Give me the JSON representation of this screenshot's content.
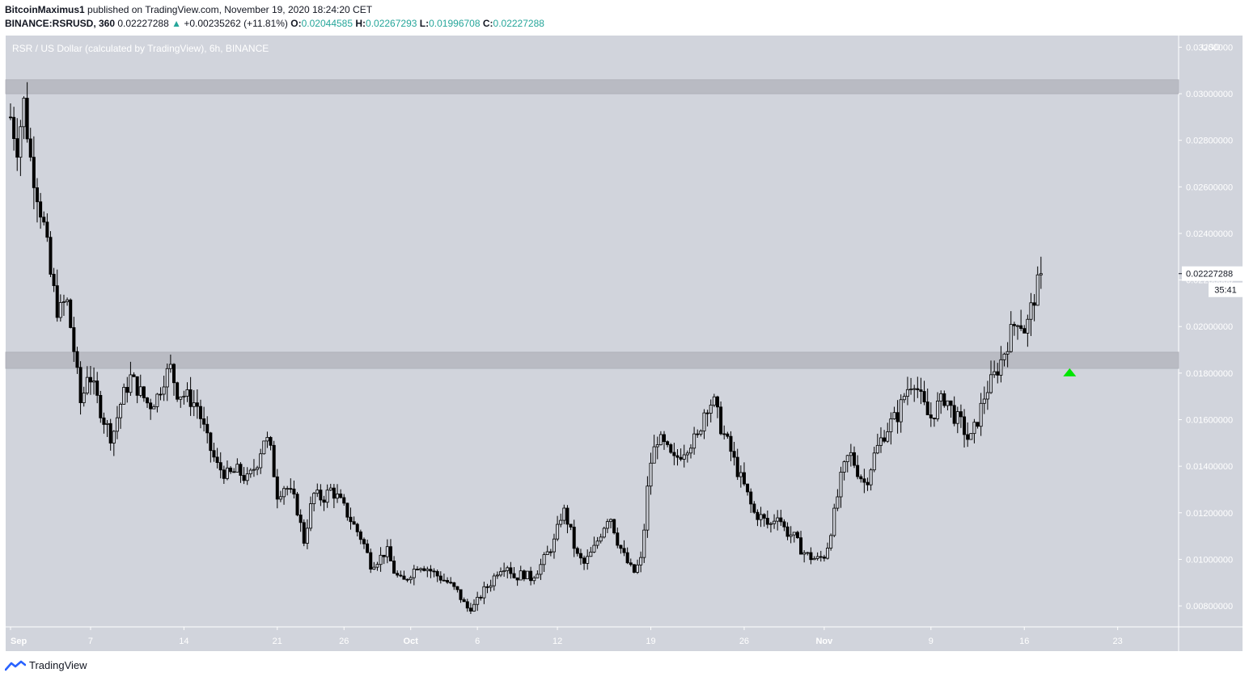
{
  "header": {
    "author": "BitcoinMaximus1",
    "published_text": "published on TradingView.com, November 19, 2020 18:24:20 CET",
    "symbol": "BINANCE:RSRUSD, 360",
    "last": "0.02227288",
    "change_arrow": "▲",
    "change": "+0.00235262 (+11.81%)",
    "o_label": "O:",
    "o": "0.02044585",
    "h_label": "H:",
    "h": "0.02267293",
    "l_label": "L:",
    "l": "0.01996708",
    "c_label": "C:",
    "c": "0.02227288"
  },
  "footer": {
    "brand": "TradingView",
    "logo_icon": "tradingview-logo-icon"
  },
  "chart_data": {
    "type": "candlestick",
    "title": "RSR / US Dollar (calculated by TradingView), 6h, BINANCE",
    "currency": "USD",
    "ylim": [
      0.0071,
      0.0325
    ],
    "y_ticks": [
      "0.03200000",
      "0.03000000",
      "0.02800000",
      "0.02600000",
      "0.02400000",
      "0.02200000",
      "0.02000000",
      "0.01800000",
      "0.01600000",
      "0.01400000",
      "0.01200000",
      "0.01000000",
      "0.00800000"
    ],
    "x_ticks": [
      {
        "label": "Sep",
        "day": 0
      },
      {
        "label": "7",
        "day": 6
      },
      {
        "label": "14",
        "day": 13
      },
      {
        "label": "21",
        "day": 20
      },
      {
        "label": "26",
        "day": 25
      },
      {
        "label": "Oct",
        "day": 30
      },
      {
        "label": "6",
        "day": 35
      },
      {
        "label": "12",
        "day": 41
      },
      {
        "label": "19",
        "day": 48
      },
      {
        "label": "26",
        "day": 55
      },
      {
        "label": "Nov",
        "day": 61
      },
      {
        "label": "9",
        "day": 69
      },
      {
        "label": "16",
        "day": 76
      },
      {
        "label": "23",
        "day": 83
      }
    ],
    "last_price_label": "0.02227288",
    "countdown": "35:41",
    "zones": [
      {
        "from": 0.03,
        "to": 0.0306,
        "label": "resistance"
      },
      {
        "from": 0.0182,
        "to": 0.0189,
        "label": "support-resistance"
      }
    ],
    "breakout_marker": {
      "day": 79.4,
      "price": 0.018,
      "color": "#00e600"
    },
    "colors": {
      "plot_bg": "#d1d4dc",
      "candle": "#000000",
      "zone": "#b7b9c1"
    },
    "candle_interval": "6h",
    "price_path": [
      [
        0.0,
        0.029
      ],
      [
        0.5,
        0.0278
      ],
      [
        1.0,
        0.0296
      ],
      [
        1.5,
        0.0272
      ],
      [
        2.0,
        0.0258
      ],
      [
        2.6,
        0.024
      ],
      [
        3.0,
        0.0222
      ],
      [
        3.6,
        0.0205
      ],
      [
        4.2,
        0.0212
      ],
      [
        4.8,
        0.0188
      ],
      [
        5.3,
        0.0165
      ],
      [
        5.8,
        0.0182
      ],
      [
        6.3,
        0.0172
      ],
      [
        7.0,
        0.016
      ],
      [
        7.6,
        0.0152
      ],
      [
        8.3,
        0.0168
      ],
      [
        9.0,
        0.0178
      ],
      [
        9.7,
        0.0172
      ],
      [
        10.4,
        0.0166
      ],
      [
        11.0,
        0.017
      ],
      [
        11.5,
        0.0178
      ],
      [
        12.0,
        0.0182
      ],
      [
        12.5,
        0.0172
      ],
      [
        13.2,
        0.017
      ],
      [
        14.0,
        0.0166
      ],
      [
        14.8,
        0.015
      ],
      [
        15.5,
        0.014
      ],
      [
        16.3,
        0.0136
      ],
      [
        17.0,
        0.0138
      ],
      [
        17.8,
        0.0134
      ],
      [
        18.5,
        0.0142
      ],
      [
        19.0,
        0.0152
      ],
      [
        19.4,
        0.015
      ],
      [
        20.0,
        0.0128
      ],
      [
        20.6,
        0.0132
      ],
      [
        21.4,
        0.0124
      ],
      [
        22.0,
        0.0108
      ],
      [
        22.7,
        0.0128
      ],
      [
        23.4,
        0.0126
      ],
      [
        24.0,
        0.013
      ],
      [
        24.6,
        0.0126
      ],
      [
        25.2,
        0.012
      ],
      [
        25.8,
        0.0114
      ],
      [
        26.4,
        0.0108
      ],
      [
        27.0,
        0.0098
      ],
      [
        27.6,
        0.01
      ],
      [
        28.2,
        0.0104
      ],
      [
        28.8,
        0.0094
      ],
      [
        29.4,
        0.009
      ],
      [
        30.0,
        0.0094
      ],
      [
        30.6,
        0.0098
      ],
      [
        31.3,
        0.0096
      ],
      [
        32.0,
        0.0093
      ],
      [
        32.8,
        0.009
      ],
      [
        33.5,
        0.0086
      ],
      [
        34.2,
        0.0079
      ],
      [
        34.8,
        0.008
      ],
      [
        35.4,
        0.0086
      ],
      [
        36.0,
        0.009
      ],
      [
        36.6,
        0.0096
      ],
      [
        37.2,
        0.0098
      ],
      [
        37.8,
        0.0092
      ],
      [
        38.4,
        0.0094
      ],
      [
        39.0,
        0.0092
      ],
      [
        39.6,
        0.0096
      ],
      [
        40.2,
        0.0102
      ],
      [
        40.8,
        0.0108
      ],
      [
        41.4,
        0.0122
      ],
      [
        41.9,
        0.0114
      ],
      [
        42.4,
        0.0102
      ],
      [
        43.0,
        0.0098
      ],
      [
        43.7,
        0.0104
      ],
      [
        44.3,
        0.0112
      ],
      [
        44.9,
        0.012
      ],
      [
        45.5,
        0.0108
      ],
      [
        46.1,
        0.01
      ],
      [
        46.7,
        0.0094
      ],
      [
        47.3,
        0.01
      ],
      [
        47.9,
        0.014
      ],
      [
        48.5,
        0.0152
      ],
      [
        49.1,
        0.0148
      ],
      [
        49.7,
        0.0142
      ],
      [
        50.3,
        0.0146
      ],
      [
        50.9,
        0.015
      ],
      [
        51.5,
        0.0152
      ],
      [
        52.1,
        0.0166
      ],
      [
        52.7,
        0.0168
      ],
      [
        53.3,
        0.0156
      ],
      [
        53.9,
        0.0148
      ],
      [
        54.5,
        0.0138
      ],
      [
        55.1,
        0.013
      ],
      [
        55.7,
        0.012
      ],
      [
        56.3,
        0.0118
      ],
      [
        56.9,
        0.0114
      ],
      [
        57.5,
        0.012
      ],
      [
        58.1,
        0.0112
      ],
      [
        58.7,
        0.011
      ],
      [
        59.3,
        0.0104
      ],
      [
        59.9,
        0.0101
      ],
      [
        60.5,
        0.01
      ],
      [
        61.1,
        0.0102
      ],
      [
        61.7,
        0.0118
      ],
      [
        62.3,
        0.0136
      ],
      [
        62.9,
        0.0146
      ],
      [
        63.5,
        0.0138
      ],
      [
        64.1,
        0.0132
      ],
      [
        64.7,
        0.0144
      ],
      [
        65.3,
        0.0152
      ],
      [
        65.9,
        0.0158
      ],
      [
        66.5,
        0.0162
      ],
      [
        67.1,
        0.0172
      ],
      [
        67.7,
        0.0178
      ],
      [
        68.3,
        0.0168
      ],
      [
        68.9,
        0.016
      ],
      [
        69.5,
        0.0166
      ],
      [
        70.1,
        0.017
      ],
      [
        70.7,
        0.0162
      ],
      [
        71.3,
        0.0158
      ],
      [
        71.9,
        0.015
      ],
      [
        72.5,
        0.016
      ],
      [
        73.1,
        0.0172
      ],
      [
        73.7,
        0.0178
      ],
      [
        74.3,
        0.0186
      ],
      [
        74.9,
        0.0196
      ],
      [
        75.5,
        0.0204
      ],
      [
        76.1,
        0.0198
      ],
      [
        76.7,
        0.0212
      ],
      [
        77.3,
        0.0223
      ]
    ]
  }
}
